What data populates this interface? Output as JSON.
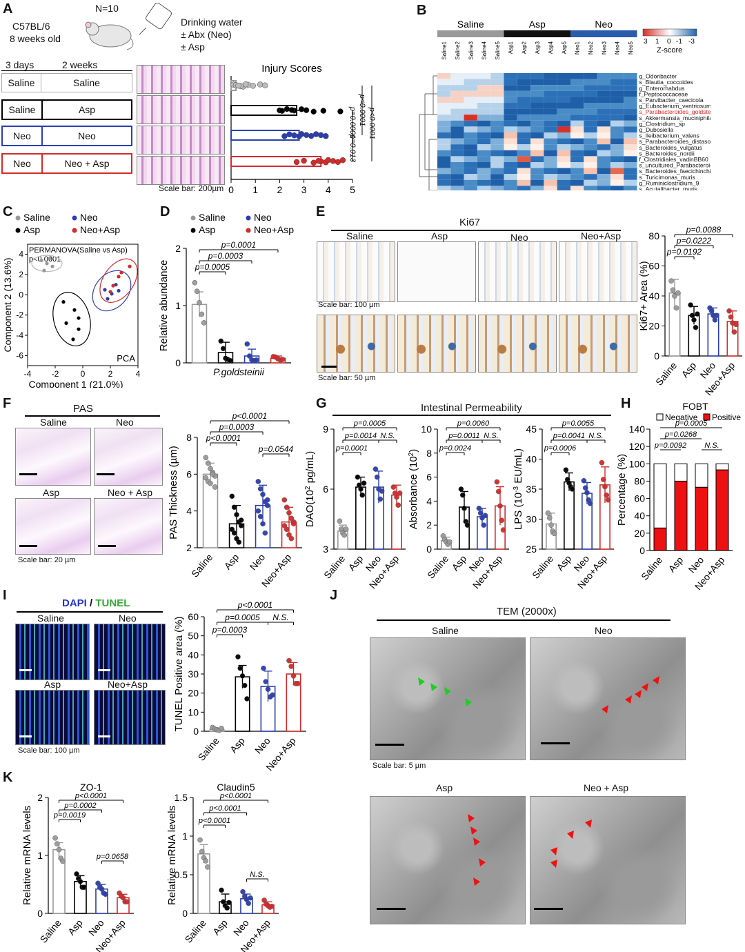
{
  "panels": {
    "A": "A",
    "B": "B",
    "C": "C",
    "D": "D",
    "E": "E",
    "F": "F",
    "G": "G",
    "H": "H",
    "I": "I",
    "J": "J",
    "K": "K"
  },
  "a": {
    "mouse": "C57BL/6",
    "age": "8 weeks old",
    "n": "N=10",
    "water": [
      "Drinking water",
      "± Abx (Neo)",
      "± Asp"
    ],
    "col1": "3 days",
    "col2": "2 weeks",
    "groups": [
      {
        "first": "Saline",
        "second": "Saline",
        "color": "#aaaaaa"
      },
      {
        "first": "Saline",
        "second": "Asp",
        "color": "#000000"
      },
      {
        "first": "Neo",
        "second": "Neo",
        "color": "#2a3eb1"
      },
      {
        "first": "Neo",
        "second": "Neo + Asp",
        "color": "#d42a2a"
      }
    ],
    "scale": "Scale bar: 200µm"
  },
  "b": {
    "groups": [
      "Saline",
      "Asp",
      "Neo"
    ],
    "samples": [
      "Saline1",
      "Saline2",
      "Saline3",
      "Saline4",
      "Saline5",
      "Asp1",
      "Asp2",
      "Asp3",
      "Asp4",
      "Asp5",
      "Neo1",
      "Neo2",
      "Neo3",
      "Neo4",
      "Neo5"
    ],
    "taxa": [
      "g_Odoribacter",
      "s_Blautia_coccoides",
      "g_Enterorhabdus",
      "f_Peptococcaceae",
      "s_Parvibacter_caecicola",
      "g_Eubacterium_ventriosum",
      "s_Parabacteroides_goldsteinii",
      "s_Akkermansia_muciniphila",
      "g_Clostridium_sp",
      "g_Dubosiella",
      "s_Ileibacterium_valens",
      "s_Parabacteroides_distasonis",
      "s_Bacteroides_vulgatus",
      "s_Bacteroides_nordii",
      "f_Clostridiales_vadinBB60",
      "s_uncultured_Parabacteroides",
      "s_Bacteroides_faecichinchillae",
      "s_Turicimonas_muris",
      "g_Ruminiclostridium_9",
      "s_Acutalibacter_muris"
    ],
    "highlight": "s_Parabacteroides_goldsteinii",
    "zscore_label": "Z-score",
    "zscore_ticks": [
      "3",
      "1",
      "0",
      "-1",
      "-3"
    ]
  },
  "c": {
    "legend": [
      "Saline",
      "Neo",
      "Asp",
      "Neo+Asp"
    ],
    "title": "PERMANOVA(Saline vs Asp)",
    "pvalue": "p<0.0001",
    "tag": "PCA",
    "xlabel": "Component 1 (21.0%)",
    "ylabel": "Component 2 (13.6%)"
  },
  "d": {
    "legend": [
      "Saline",
      "Neo",
      "Asp",
      "Neo+Asp"
    ],
    "ylabel": "Relative abundance",
    "xlabel": "P.goldsteinii",
    "sig": [
      "p=0.0001",
      "p=0.0003",
      "p=0.0005"
    ]
  },
  "e": {
    "title": "Ki67",
    "cols": [
      "Saline",
      "Asp",
      "Neo",
      "Neo+Asp"
    ],
    "scale1": "Scale bar: 100 µm",
    "scale2": "Scale bar: 50 µm",
    "ylabel": "Ki67+ Area (%)",
    "sig": [
      "p=0.0088",
      "p=0.0222",
      "p=0.0192"
    ]
  },
  "f": {
    "title": "PAS",
    "labels": [
      "Saline",
      "Neo",
      "Asp",
      "Neo + Asp"
    ],
    "scale": "Scale bar: 20 µm",
    "ylabel": "PAS Thickness (µm)",
    "sig": [
      "p<0.0001",
      "p=0.0003",
      "p<0.0001",
      "p=0.0544"
    ]
  },
  "g": {
    "title": "Intestinal Permeability",
    "plots": [
      {
        "ylabel": "DAO(10",
        "ylabel_sup": "2",
        "ylabel_tail": " pg/mL)",
        "sig": [
          "p=0.0005",
          "p=0.0014",
          "N.S.",
          "p=0.0001"
        ]
      },
      {
        "ylabel": "Absorbance (10",
        "ylabel_sup": "2",
        "ylabel_tail": ")",
        "sig": [
          "p=0.0060",
          "p=0.0011",
          "N.S.",
          "p=0.0024"
        ]
      },
      {
        "ylabel": "LPS (10",
        "ylabel_sup": "-3",
        "ylabel_tail": " EU/mL)",
        "sig": [
          "p=0.0055",
          "p=0.0041",
          "N.S.",
          "p=0.0006"
        ]
      }
    ]
  },
  "h": {
    "title": "FOBT",
    "legend": [
      "Negative",
      "Positive"
    ],
    "ylabel": "Percentage (%)",
    "sig": [
      "p=0.0005",
      "p=0.0268",
      "p=0.0092",
      "N.S."
    ]
  },
  "i": {
    "title_a": "DAPI",
    "slash": " / ",
    "title_b": "TUNEL",
    "labels": [
      "Saline",
      "Neo",
      "Asp",
      "Neo+Asp"
    ],
    "scale": "Scale bar:  100 µm",
    "ylabel": "TUNEL Positive area (%)",
    "sig": [
      "p<0.0001",
      "p=0.0005",
      "N.S.",
      "p=0.0003"
    ]
  },
  "j": {
    "title": "TEM (2000x)",
    "labels": [
      "Saline",
      "Neo",
      "Asp",
      "Neo + Asp"
    ],
    "scale": "Scale bar: 5 µm"
  },
  "k": {
    "plots": [
      {
        "title": "ZO-1",
        "ylabel": "Relative mRNA levels",
        "sig": [
          "p<0.0001",
          "p=0.0002",
          "p=0.0019",
          "p=0.0658"
        ]
      },
      {
        "title": "Claudin5",
        "ylabel": "Relative mRNA levels",
        "sig": [
          "p<0.0001",
          "p<0.0001",
          "p<0.0001",
          "N.S."
        ]
      }
    ]
  },
  "categories": [
    "Saline",
    "Asp",
    "Neo",
    "Neo+Asp"
  ],
  "colors": {
    "saline": "#999999",
    "asp": "#000000",
    "neo": "#2a3eb1",
    "neoasp": "#d42a2a"
  },
  "chart_data": [
    {
      "panel": "A",
      "type": "bar",
      "title": "Injury Scores",
      "orientation": "horizontal",
      "categories": [
        "Saline",
        "Asp",
        "Neo",
        "Neo+Asp"
      ],
      "values": [
        0.2,
        2.7,
        2.8,
        3.7
      ],
      "xlim": [
        0,
        5
      ],
      "xticks": [
        0,
        1,
        2,
        3,
        4,
        5
      ],
      "sig": [
        "p<0.0001",
        "p<0.0001",
        "p=0.0001",
        "p=0.013"
      ]
    },
    {
      "panel": "C",
      "type": "scatter",
      "xlim": [
        -4,
        4
      ],
      "ylim": [
        -7,
        5
      ],
      "xticks": [
        -4,
        -2,
        0,
        2,
        4
      ],
      "yticks": [
        -6,
        -4,
        -2,
        0,
        2,
        4
      ],
      "series": [
        {
          "name": "Saline",
          "points": [
            [
              -3,
              3.4
            ],
            [
              -2.6,
              3.1
            ],
            [
              -2.2,
              2.8
            ],
            [
              -2.8,
              2.4
            ],
            [
              -2.4,
              3.6
            ]
          ]
        },
        {
          "name": "Asp",
          "points": [
            [
              -0.6,
              -1.5
            ],
            [
              -0.3,
              -2.3
            ],
            [
              -1.2,
              -2.8
            ],
            [
              -1.4,
              -0.7
            ],
            [
              -0.3,
              -3.4
            ],
            [
              -0.7,
              -4.4
            ]
          ]
        },
        {
          "name": "Neo",
          "points": [
            [
              1.6,
              0.5
            ],
            [
              2.4,
              1.0
            ],
            [
              2.1,
              0.1
            ],
            [
              1.8,
              -0.4
            ],
            [
              2.6,
              0.4
            ]
          ]
        },
        {
          "name": "Neo+Asp",
          "points": [
            [
              2.8,
              2.2
            ],
            [
              2.6,
              1.8
            ],
            [
              3.4,
              2.8
            ],
            [
              2.2,
              0.9
            ],
            [
              2.0,
              0.3
            ]
          ]
        }
      ]
    },
    {
      "panel": "D",
      "type": "bar",
      "categories": [
        "Saline",
        "Asp",
        "Neo",
        "Neo+Asp"
      ],
      "values": [
        1.02,
        0.18,
        0.12,
        0.08
      ],
      "err": [
        0.22,
        0.18,
        0.12,
        0.04
      ],
      "ylim": [
        0,
        2
      ],
      "yticks": [
        0,
        1,
        2
      ],
      "points": [
        [
          1.4,
          1.25,
          1.05,
          0.85,
          0.7
        ],
        [
          0.38,
          0.25,
          0.08,
          0.06,
          0.04
        ],
        [
          0.33,
          0.12,
          0.05,
          0.04,
          0.05
        ],
        [
          0.11,
          0.1,
          0.07,
          0.05,
          0.06
        ]
      ]
    },
    {
      "panel": "E",
      "type": "bar",
      "categories": [
        "Saline",
        "Asp",
        "Neo",
        "Neo+Asp"
      ],
      "values": [
        42,
        27,
        28,
        23
      ],
      "err": [
        9,
        6,
        4,
        7
      ],
      "ylim": [
        0,
        80
      ],
      "yticks": [
        0,
        20,
        40,
        60,
        80
      ],
      "points": [
        [
          50,
          44,
          40,
          32,
          42
        ],
        [
          34,
          27,
          24,
          19,
          28
        ],
        [
          32,
          30,
          27,
          24,
          27
        ],
        [
          30,
          26,
          22,
          16,
          21
        ]
      ]
    },
    {
      "panel": "F",
      "type": "bar",
      "categories": [
        "Saline",
        "Asp",
        "Neo",
        "Neo+Asp"
      ],
      "values": [
        6.0,
        3.3,
        4.3,
        3.4
      ],
      "err": [
        0.6,
        1.0,
        1.1,
        0.8
      ],
      "ylim": [
        2,
        8
      ],
      "yticks": [
        2,
        4,
        6,
        8
      ],
      "points": [
        [
          6.9,
          6.6,
          6.3,
          6.1,
          5.9,
          5.8,
          5.6,
          5.5,
          6.0,
          5.3
        ],
        [
          4.8,
          4.2,
          3.8,
          3.4,
          3.2,
          3.0,
          2.8,
          2.5,
          2.3,
          3.5
        ],
        [
          5.6,
          5.2,
          4.9,
          4.5,
          4.3,
          4.0,
          3.7,
          3.3,
          2.8,
          4.6
        ],
        [
          4.6,
          4.2,
          3.9,
          3.6,
          3.4,
          3.2,
          3.0,
          2.7,
          2.5,
          3.3
        ]
      ]
    },
    {
      "panel": "G1",
      "type": "bar",
      "categories": [
        "Saline",
        "Asp",
        "Neo",
        "Neo+Asp"
      ],
      "values": [
        3.9,
        6.1,
        6.1,
        5.7
      ],
      "err": [
        0.3,
        0.5,
        0.8,
        0.5
      ],
      "ylim": [
        3,
        9
      ],
      "yticks": [
        3,
        6,
        9
      ],
      "points": [
        [
          4.4,
          4.0,
          3.8,
          3.7,
          4.0
        ],
        [
          6.6,
          6.2,
          6.0,
          5.7,
          6.3
        ],
        [
          7.0,
          6.6,
          6.0,
          5.5,
          5.9
        ],
        [
          6.1,
          5.8,
          5.6,
          5.2,
          5.8
        ]
      ]
    },
    {
      "panel": "G2",
      "type": "bar",
      "categories": [
        "Saline",
        "Asp",
        "Neo",
        "Neo+Asp"
      ],
      "values": [
        0.7,
        3.5,
        2.7,
        3.6
      ],
      "err": [
        0.3,
        1.3,
        0.7,
        1.6
      ],
      "ylim": [
        0,
        10
      ],
      "yticks": [
        0,
        2,
        4,
        6,
        8,
        10
      ],
      "points": [
        [
          1.1,
          0.8,
          0.6,
          0.4,
          0.6
        ],
        [
          5.0,
          4.5,
          3.4,
          2.3,
          2.0
        ],
        [
          3.4,
          3.0,
          2.6,
          2.0,
          2.8
        ],
        [
          5.6,
          4.8,
          3.6,
          2.4,
          1.6
        ]
      ]
    },
    {
      "panel": "G3",
      "type": "bar",
      "categories": [
        "Saline",
        "Asp",
        "Neo",
        "Neo+Asp"
      ],
      "values": [
        29.2,
        36.2,
        34.3,
        35.7
      ],
      "err": [
        1.8,
        1.5,
        1.8,
        3.0
      ],
      "ylim": [
        25,
        45
      ],
      "yticks": [
        25,
        30,
        35,
        40,
        45
      ],
      "points": [
        [
          31.0,
          30.2,
          29.0,
          28.0,
          27.6
        ],
        [
          38.2,
          36.6,
          36.0,
          35.4,
          35.0
        ],
        [
          36.4,
          35.2,
          34.4,
          33.2,
          32.6
        ],
        [
          39.4,
          36.6,
          35.4,
          34.0,
          33.2
        ]
      ]
    },
    {
      "panel": "H",
      "type": "bar",
      "stacked": true,
      "categories": [
        "Saline",
        "Asp",
        "Neo",
        "Neo+Asp"
      ],
      "series": [
        {
          "name": "Negative",
          "values": [
            74,
            20,
            27,
            7
          ]
        },
        {
          "name": "Positive",
          "values": [
            26,
            80,
            73,
            93
          ]
        }
      ],
      "ylim": [
        0,
        140
      ],
      "yticks": [
        0,
        20,
        40,
        60,
        80,
        100,
        120,
        140
      ]
    },
    {
      "panel": "I",
      "type": "bar",
      "categories": [
        "Saline",
        "Asp",
        "Neo",
        "Neo+Asp"
      ],
      "values": [
        1,
        28.5,
        23.5,
        30
      ],
      "err": [
        0.5,
        6,
        8,
        6
      ],
      "ylim": [
        0,
        60
      ],
      "yticks": [
        0,
        10,
        20,
        30,
        40,
        50,
        60
      ],
      "points": [
        [
          2,
          1.2,
          0.8,
          0.5,
          1.5
        ],
        [
          39,
          33,
          29,
          24,
          17
        ],
        [
          33,
          26,
          22,
          18,
          19
        ],
        [
          37,
          34,
          29,
          25,
          25
        ]
      ]
    },
    {
      "panel": "K1",
      "type": "bar",
      "categories": [
        "Saline",
        "Asp",
        "Neo",
        "Neo+Asp"
      ],
      "values": [
        1.1,
        0.55,
        0.42,
        0.27
      ],
      "err": [
        0.12,
        0.1,
        0.08,
        0.06
      ],
      "ylim": [
        0,
        2
      ],
      "yticks": [
        0,
        1,
        2
      ],
      "points": [
        [
          1.3,
          1.2,
          1.1,
          0.95,
          0.9
        ],
        [
          0.68,
          0.6,
          0.55,
          0.45,
          0.45
        ],
        [
          0.52,
          0.45,
          0.42,
          0.35,
          0.33
        ],
        [
          0.35,
          0.3,
          0.27,
          0.2,
          0.2
        ]
      ]
    },
    {
      "panel": "K2",
      "type": "bar",
      "categories": [
        "Saline",
        "Asp",
        "Neo",
        "Neo+Asp"
      ],
      "values": [
        0.77,
        0.15,
        0.19,
        0.11
      ],
      "err": [
        0.12,
        0.1,
        0.06,
        0.04
      ],
      "ylim": [
        0,
        1.5
      ],
      "yticks": [
        0,
        0.5,
        1.0,
        1.5
      ],
      "points": [
        [
          0.95,
          0.8,
          0.72,
          0.68,
          0.6
        ],
        [
          0.3,
          0.15,
          0.1,
          0.07,
          0.14
        ],
        [
          0.28,
          0.22,
          0.18,
          0.13,
          0.2
        ],
        [
          0.17,
          0.12,
          0.1,
          0.08,
          0.09
        ]
      ]
    }
  ]
}
